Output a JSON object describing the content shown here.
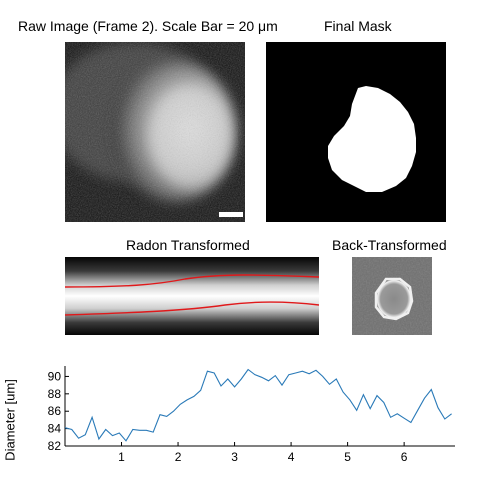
{
  "titles": {
    "raw": "Raw Image (Frame 2). Scale Bar = 20 μm",
    "mask": "Final Mask",
    "radon": "Radon Transformed",
    "back": "Back-Transformed"
  },
  "colors": {
    "line": "#2a7ab8",
    "boundary": "#e0191b"
  },
  "chart_data": {
    "type": "line",
    "ylabel": "Diameter [um]",
    "xlim": [
      0,
      6.9
    ],
    "ylim": [
      82,
      91.2
    ],
    "xticks": [
      1,
      2,
      3,
      4,
      5,
      6
    ],
    "yticks": [
      82,
      84,
      86,
      88,
      90
    ],
    "x": [
      0.0,
      0.12,
      0.24,
      0.36,
      0.48,
      0.6,
      0.72,
      0.84,
      0.96,
      1.08,
      1.2,
      1.32,
      1.44,
      1.56,
      1.68,
      1.8,
      1.92,
      2.04,
      2.16,
      2.28,
      2.4,
      2.52,
      2.64,
      2.76,
      2.88,
      3.0,
      3.12,
      3.24,
      3.36,
      3.48,
      3.6,
      3.72,
      3.84,
      3.96,
      4.08,
      4.2,
      4.32,
      4.44,
      4.56,
      4.68,
      4.8,
      4.92,
      5.04,
      5.16,
      5.28,
      5.4,
      5.52,
      5.64,
      5.76,
      5.88,
      6.0,
      6.12,
      6.24,
      6.36,
      6.48,
      6.6,
      6.72,
      6.84
    ],
    "values": [
      84.1,
      83.9,
      82.9,
      83.3,
      85.3,
      82.8,
      83.9,
      83.2,
      83.5,
      82.6,
      83.9,
      83.8,
      83.8,
      83.6,
      85.6,
      85.4,
      86.0,
      86.8,
      87.3,
      87.7,
      88.4,
      90.6,
      90.4,
      88.9,
      89.7,
      88.8,
      89.7,
      90.8,
      90.2,
      89.9,
      89.5,
      90.1,
      89.0,
      90.2,
      90.4,
      90.6,
      90.3,
      90.7,
      90.0,
      89.1,
      89.7,
      88.2,
      87.3,
      86.1,
      87.9,
      86.3,
      87.8,
      87.0,
      85.3,
      85.7,
      85.2,
      84.7,
      86.1,
      87.5,
      88.5,
      86.4,
      85.1,
      85.7
    ]
  }
}
